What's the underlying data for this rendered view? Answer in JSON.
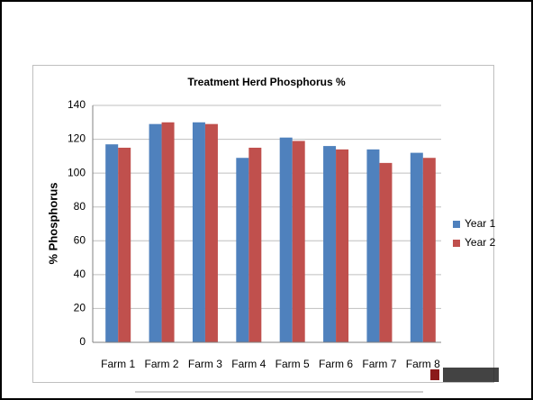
{
  "chart_data": {
    "type": "bar",
    "title": "Treatment Herd Phosphorus %",
    "y_label": "% Phosphorus",
    "categories": [
      "Farm 1",
      "Farm 2",
      "Farm 3",
      "Farm 4",
      "Farm 5",
      "Farm 6",
      "Farm 7",
      "Farm 8"
    ],
    "series": [
      {
        "name": "Year 1",
        "color": "#4f81bd",
        "values": [
          117,
          129,
          130,
          109,
          121,
          116,
          114,
          112
        ]
      },
      {
        "name": "Year 2",
        "color": "#c0504d",
        "values": [
          115,
          130,
          129,
          115,
          119,
          114,
          106,
          109
        ]
      }
    ],
    "ylim": [
      0,
      140
    ],
    "yticks": [
      0,
      20,
      40,
      60,
      80,
      100,
      120,
      140
    ],
    "grid": true,
    "legend": "right"
  }
}
